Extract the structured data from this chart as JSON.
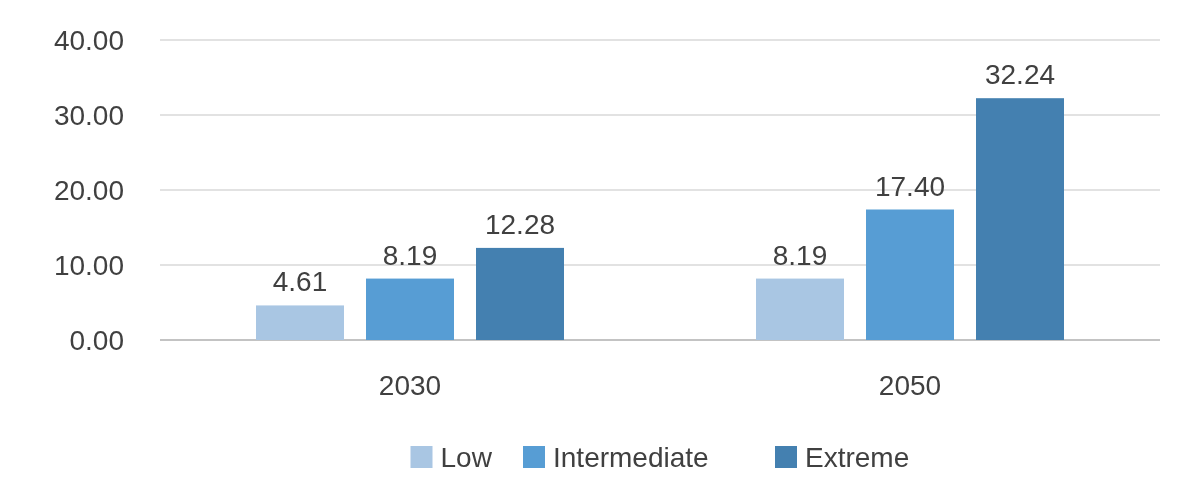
{
  "chart_data": {
    "type": "bar",
    "categories": [
      "2030",
      "2050"
    ],
    "series": [
      {
        "name": "Low",
        "color": "#a9c6e3",
        "values": [
          4.61,
          8.19
        ],
        "value_labels": [
          "4.61",
          "8.19"
        ]
      },
      {
        "name": "Intermediate",
        "color": "#579dd4",
        "values": [
          8.19,
          17.4
        ],
        "value_labels": [
          "8.19",
          "17.40"
        ]
      },
      {
        "name": "Extreme",
        "color": "#4480b0",
        "values": [
          12.28,
          32.24
        ],
        "value_labels": [
          "12.28",
          "32.24"
        ]
      }
    ],
    "ylim": [
      0,
      40
    ],
    "yticks": [
      {
        "value": 0,
        "label": "0.00"
      },
      {
        "value": 10,
        "label": "10.00"
      },
      {
        "value": 20,
        "label": "20.00"
      },
      {
        "value": 30,
        "label": "30.00"
      },
      {
        "value": 40,
        "label": "40.00"
      }
    ],
    "grid": "y",
    "legend": "bottom"
  }
}
